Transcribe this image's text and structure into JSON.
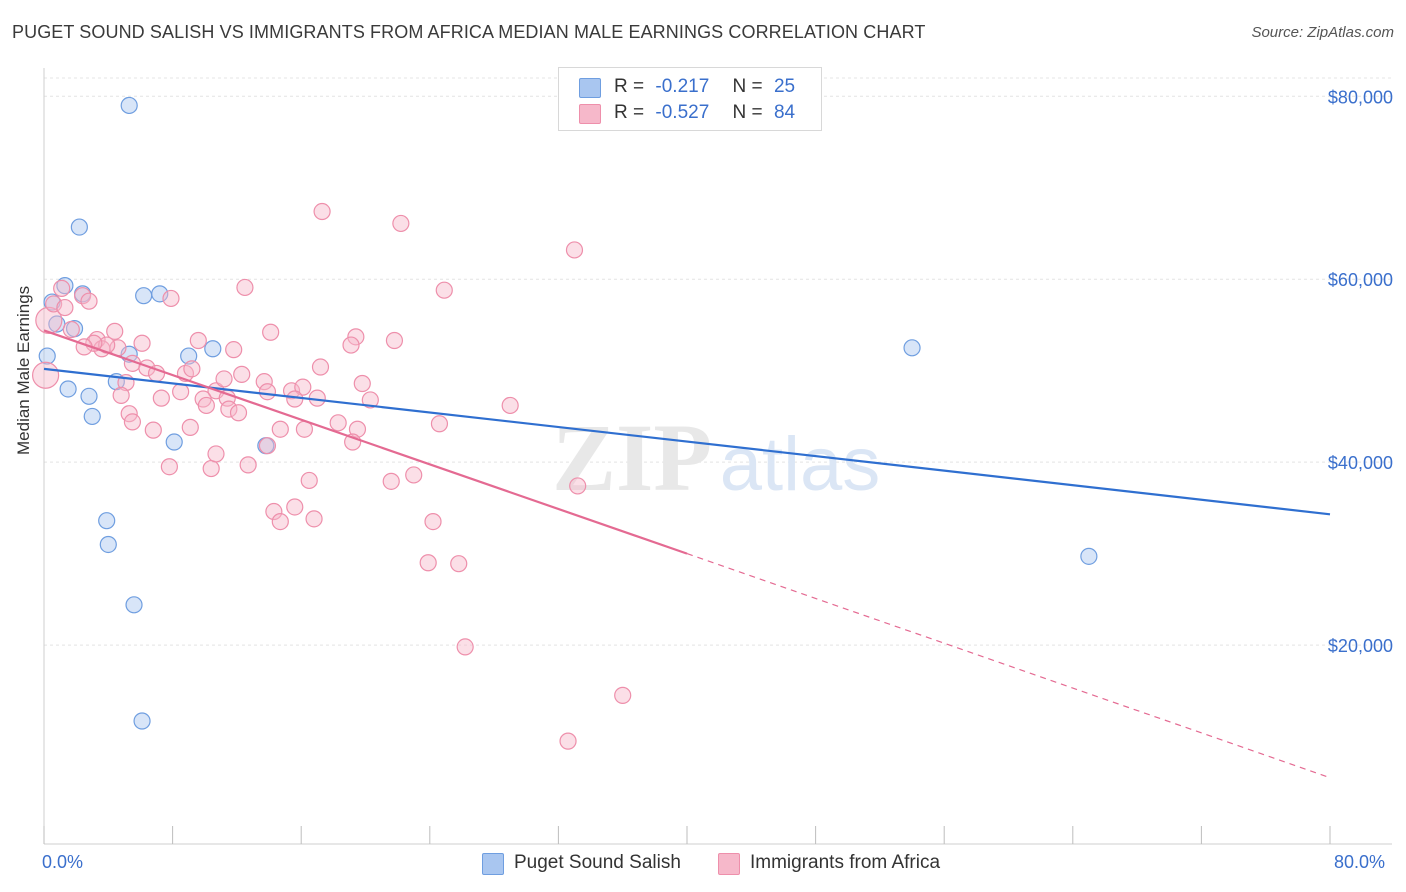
{
  "title": "PUGET SOUND SALISH VS IMMIGRANTS FROM AFRICA MEDIAN MALE EARNINGS CORRELATION CHART",
  "source": "Source: ZipAtlas.com",
  "watermark": {
    "zip": "ZIP",
    "atlas": "atlas"
  },
  "legend_top": [
    {
      "r_label": "R =",
      "r_value": "-0.217",
      "n_label": "N =",
      "n_value": "25",
      "color": "#a9c6f0"
    },
    {
      "r_label": "R =",
      "r_value": "-0.527",
      "n_label": "N =",
      "n_value": "84",
      "color": "#f6b8ca"
    }
  ],
  "legend_bottom": [
    {
      "label": "Puget Sound Salish",
      "color": "#a9c6f0"
    },
    {
      "label": "Immigrants from Africa",
      "color": "#f6b8ca"
    }
  ],
  "x_min_label": "0.0%",
  "x_max_label": "80.0%",
  "chart_data": {
    "type": "scatter",
    "xlabel": "",
    "ylabel": "Median Male Earnings",
    "xlim": [
      0,
      80
    ],
    "ylim": [
      0,
      82000
    ],
    "y_ticks": [
      {
        "value": 20000,
        "label": "$20,000"
      },
      {
        "value": 40000,
        "label": "$40,000"
      },
      {
        "value": 60000,
        "label": "$60,000"
      },
      {
        "value": 80000,
        "label": "$80,000"
      }
    ],
    "grid": true,
    "series": [
      {
        "name": "Puget Sound Salish",
        "color": "#a9c6f0",
        "stroke": "#6f9ee0",
        "trend_color": "#2f6fd0",
        "trend": {
          "x0": 0,
          "y0": 50200,
          "x1": 80,
          "y1": 34300,
          "dashed_to": 80
        },
        "points": [
          [
            5.3,
            79000
          ],
          [
            2.2,
            65700
          ],
          [
            1.3,
            59300
          ],
          [
            0.5,
            57500
          ],
          [
            2.4,
            58400
          ],
          [
            6.2,
            58200
          ],
          [
            7.2,
            58400
          ],
          [
            0.8,
            55100
          ],
          [
            1.9,
            54600
          ],
          [
            10.5,
            52400
          ],
          [
            5.3,
            51800
          ],
          [
            9.0,
            51600
          ],
          [
            0.2,
            51600
          ],
          [
            4.5,
            48800
          ],
          [
            1.5,
            48000
          ],
          [
            2.8,
            47200
          ],
          [
            3.0,
            45000
          ],
          [
            8.1,
            42200
          ],
          [
            13.8,
            41800
          ],
          [
            3.9,
            33600
          ],
          [
            4.0,
            31000
          ],
          [
            5.6,
            24400
          ],
          [
            6.1,
            11700
          ],
          [
            54.0,
            52500
          ],
          [
            65.0,
            29700
          ]
        ]
      },
      {
        "name": "Immigrants from Africa",
        "color": "#f6b8ca",
        "stroke": "#ee8fab",
        "trend_color": "#e46a92",
        "trend": {
          "x0": 0,
          "y0": 54400,
          "x1": 40,
          "y1": 30000,
          "dashed_to": 80,
          "dashed_y1": 5500
        },
        "points": [
          [
            0.3,
            55500
          ],
          [
            0.6,
            57300
          ],
          [
            1.1,
            59000
          ],
          [
            1.3,
            56900
          ],
          [
            2.4,
            58200
          ],
          [
            2.8,
            57600
          ],
          [
            1.7,
            54500
          ],
          [
            3.3,
            53400
          ],
          [
            3.6,
            52400
          ],
          [
            4.6,
            52500
          ],
          [
            4.4,
            54300
          ],
          [
            3.9,
            52800
          ],
          [
            6.1,
            53000
          ],
          [
            7.9,
            57900
          ],
          [
            12.5,
            59100
          ],
          [
            17.3,
            67400
          ],
          [
            22.2,
            66100
          ],
          [
            33.0,
            63200
          ],
          [
            24.9,
            58800
          ],
          [
            19.4,
            53700
          ],
          [
            9.6,
            53300
          ],
          [
            11.8,
            52300
          ],
          [
            14.1,
            54200
          ],
          [
            19.1,
            52800
          ],
          [
            5.5,
            50800
          ],
          [
            6.4,
            50300
          ],
          [
            8.8,
            49700
          ],
          [
            9.2,
            50200
          ],
          [
            12.3,
            49600
          ],
          [
            13.7,
            48800
          ],
          [
            7.0,
            49700
          ],
          [
            5.1,
            48700
          ],
          [
            10.7,
            47800
          ],
          [
            8.5,
            47700
          ],
          [
            13.9,
            47700
          ],
          [
            15.4,
            47800
          ],
          [
            16.1,
            48200
          ],
          [
            17.2,
            50400
          ],
          [
            4.8,
            47300
          ],
          [
            7.3,
            47000
          ],
          [
            9.9,
            46900
          ],
          [
            11.4,
            47000
          ],
          [
            15.6,
            46900
          ],
          [
            17.0,
            47000
          ],
          [
            20.3,
            46800
          ],
          [
            29.0,
            46200
          ],
          [
            10.1,
            46200
          ],
          [
            11.5,
            45800
          ],
          [
            12.1,
            45400
          ],
          [
            5.3,
            45300
          ],
          [
            5.5,
            44400
          ],
          [
            6.8,
            43500
          ],
          [
            9.1,
            43800
          ],
          [
            14.7,
            43600
          ],
          [
            16.2,
            43600
          ],
          [
            18.3,
            44300
          ],
          [
            19.5,
            43600
          ],
          [
            24.6,
            44200
          ],
          [
            7.8,
            39500
          ],
          [
            10.4,
            39300
          ],
          [
            10.7,
            40900
          ],
          [
            12.7,
            39700
          ],
          [
            13.9,
            41800
          ],
          [
            19.2,
            42200
          ],
          [
            16.5,
            38000
          ],
          [
            21.6,
            37900
          ],
          [
            23.0,
            38600
          ],
          [
            33.2,
            37400
          ],
          [
            14.3,
            34600
          ],
          [
            14.7,
            33500
          ],
          [
            15.6,
            35100
          ],
          [
            16.8,
            33800
          ],
          [
            24.2,
            33500
          ],
          [
            23.9,
            29000
          ],
          [
            25.8,
            28900
          ],
          [
            26.2,
            19800
          ],
          [
            36.0,
            14500
          ],
          [
            32.6,
            9500
          ],
          [
            0.1,
            49500
          ],
          [
            3.1,
            53000
          ],
          [
            19.8,
            48600
          ],
          [
            2.5,
            52600
          ],
          [
            21.8,
            53300
          ],
          [
            11.2,
            49100
          ]
        ]
      }
    ]
  }
}
